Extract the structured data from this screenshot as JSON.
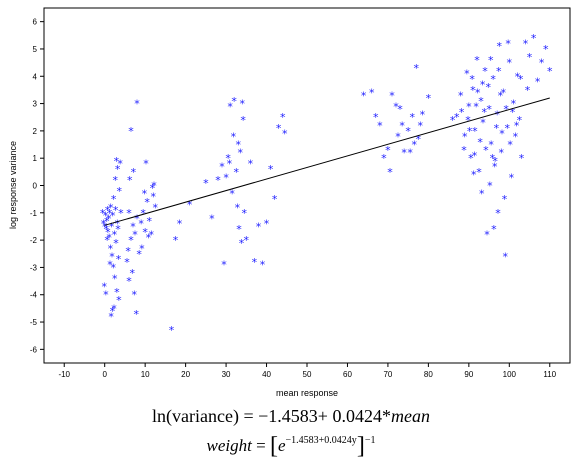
{
  "chart_data": {
    "type": "scatter",
    "title": "",
    "xlabel": "mean response",
    "ylabel": "log response variance",
    "xlim": [
      -15,
      115
    ],
    "ylim": [
      -6.5,
      6.5
    ],
    "xticks": [
      -10,
      0,
      10,
      20,
      30,
      40,
      50,
      60,
      70,
      80,
      90,
      100,
      110
    ],
    "yticks": [
      -6,
      -5,
      -4,
      -3,
      -2,
      -1,
      0,
      1,
      2,
      3,
      4,
      5,
      6
    ],
    "grid": false,
    "marker_color": "#1a1aff",
    "line_color": "#000000",
    "fit_line": {
      "intercept": -1.4583,
      "slope": 0.0424,
      "x_range": [
        0,
        110
      ]
    },
    "points": [
      [
        -0.5,
        -1.0
      ],
      [
        -0.3,
        -1.4
      ],
      [
        0.0,
        -1.5
      ],
      [
        0.2,
        -1.1
      ],
      [
        0.4,
        -1.6
      ],
      [
        0.5,
        -1.3
      ],
      [
        0.7,
        -0.9
      ],
      [
        0.8,
        -1.7
      ],
      [
        1.0,
        -1.2
      ],
      [
        1.1,
        -1.9
      ],
      [
        1.2,
        -1.0
      ],
      [
        1.4,
        -2.3
      ],
      [
        1.5,
        -0.8
      ],
      [
        1.7,
        -1.5
      ],
      [
        1.8,
        -2.6
      ],
      [
        2.0,
        -1.1
      ],
      [
        2.1,
        -3.0
      ],
      [
        2.2,
        -0.5
      ],
      [
        2.4,
        -1.8
      ],
      [
        2.5,
        -3.4
      ],
      [
        2.6,
        0.2
      ],
      [
        2.8,
        -2.1
      ],
      [
        3.0,
        -3.9
      ],
      [
        3.1,
        -1.4
      ],
      [
        3.2,
        0.6
      ],
      [
        3.4,
        -2.7
      ],
      [
        3.5,
        -4.2
      ],
      [
        3.6,
        -0.2
      ],
      [
        3.8,
        0.8
      ],
      [
        4.0,
        -1.0
      ],
      [
        -0.1,
        -3.7
      ],
      [
        0.3,
        -4.0
      ],
      [
        1.6,
        -4.8
      ],
      [
        1.9,
        -4.6
      ],
      [
        2.3,
        -4.5
      ],
      [
        0.6,
        -2.0
      ],
      [
        1.3,
        -2.9
      ],
      [
        2.7,
        -0.9
      ],
      [
        3.3,
        -1.6
      ],
      [
        2.9,
        0.9
      ],
      [
        6.0,
        -1.0
      ],
      [
        6.5,
        -2.0
      ],
      [
        7.0,
        -1.5
      ],
      [
        7.5,
        -1.8
      ],
      [
        8.0,
        -1.2
      ],
      [
        8.5,
        -2.5
      ],
      [
        9.0,
        -1.4
      ],
      [
        9.5,
        -1.0
      ],
      [
        10.0,
        -1.7
      ],
      [
        10.5,
        -0.6
      ],
      [
        11.0,
        -1.3
      ],
      [
        11.5,
        -1.8
      ],
      [
        12.0,
        -0.4
      ],
      [
        12.5,
        -0.8
      ],
      [
        6.2,
        0.2
      ],
      [
        7.1,
        0.5
      ],
      [
        6.8,
        -3.2
      ],
      [
        7.3,
        -4.0
      ],
      [
        7.8,
        -4.7
      ],
      [
        6.0,
        -3.5
      ],
      [
        5.5,
        -2.8
      ],
      [
        9.2,
        -2.3
      ],
      [
        10.8,
        -1.9
      ],
      [
        12.2,
        0.0
      ],
      [
        6.5,
        2.0
      ],
      [
        8.0,
        3.0
      ],
      [
        10.2,
        0.8
      ],
      [
        11.8,
        -0.1
      ],
      [
        9.8,
        -0.3
      ],
      [
        5.8,
        -2.4
      ],
      [
        16.5,
        -5.3
      ],
      [
        17.5,
        -2.0
      ],
      [
        18.5,
        -1.4
      ],
      [
        21.0,
        -0.7
      ],
      [
        25.0,
        0.1
      ],
      [
        26.5,
        -1.2
      ],
      [
        28.0,
        0.2
      ],
      [
        29.0,
        0.7
      ],
      [
        29.5,
        -2.9
      ],
      [
        30.0,
        0.3
      ],
      [
        30.5,
        1.0
      ],
      [
        31.0,
        2.9
      ],
      [
        31.5,
        -0.3
      ],
      [
        32.0,
        3.1
      ],
      [
        32.5,
        0.5
      ],
      [
        33.0,
        1.5
      ],
      [
        33.5,
        1.2
      ],
      [
        34.0,
        3.0
      ],
      [
        34.5,
        -1.0
      ],
      [
        33.8,
        -2.1
      ],
      [
        33.2,
        -1.6
      ],
      [
        32.8,
        -0.8
      ],
      [
        35.0,
        -2.0
      ],
      [
        36.0,
        0.8
      ],
      [
        37.0,
        -2.8
      ],
      [
        38.0,
        -1.5
      ],
      [
        39.0,
        -2.9
      ],
      [
        40.0,
        -1.4
      ],
      [
        41.0,
        0.6
      ],
      [
        42.0,
        -0.5
      ],
      [
        43.0,
        2.1
      ],
      [
        44.0,
        2.5
      ],
      [
        44.5,
        1.9
      ],
      [
        34.2,
        2.4
      ],
      [
        31.8,
        1.8
      ],
      [
        30.8,
        0.8
      ],
      [
        64.0,
        3.3
      ],
      [
        66.0,
        3.4
      ],
      [
        67.0,
        2.5
      ],
      [
        68.0,
        2.2
      ],
      [
        69.0,
        1.0
      ],
      [
        70.0,
        1.3
      ],
      [
        71.0,
        3.3
      ],
      [
        72.0,
        2.9
      ],
      [
        73.0,
        2.8
      ],
      [
        74.0,
        1.2
      ],
      [
        75.0,
        2.0
      ],
      [
        75.5,
        1.2
      ],
      [
        76.0,
        2.5
      ],
      [
        76.5,
        1.5
      ],
      [
        77.0,
        4.3
      ],
      [
        77.5,
        1.7
      ],
      [
        78.0,
        2.2
      ],
      [
        78.5,
        2.6
      ],
      [
        80.0,
        3.2
      ],
      [
        72.5,
        1.8
      ],
      [
        70.5,
        0.5
      ],
      [
        73.5,
        2.2
      ],
      [
        86.0,
        2.4
      ],
      [
        87.0,
        2.5
      ],
      [
        88.0,
        3.3
      ],
      [
        89.0,
        1.8
      ],
      [
        89.5,
        4.1
      ],
      [
        90.0,
        2.9
      ],
      [
        90.5,
        1.0
      ],
      [
        91.0,
        3.5
      ],
      [
        91.5,
        2.0
      ],
      [
        92.0,
        4.6
      ],
      [
        92.5,
        0.5
      ],
      [
        93.0,
        3.1
      ],
      [
        93.5,
        2.3
      ],
      [
        94.0,
        4.2
      ],
      [
        94.5,
        -1.8
      ],
      [
        95.0,
        2.8
      ],
      [
        95.5,
        1.5
      ],
      [
        96.0,
        3.9
      ],
      [
        96.5,
        0.9
      ],
      [
        97.0,
        2.6
      ],
      [
        97.5,
        5.1
      ],
      [
        98.0,
        1.2
      ],
      [
        98.5,
        3.4
      ],
      [
        99.0,
        -2.6
      ],
      [
        99.5,
        2.1
      ],
      [
        100.0,
        4.5
      ],
      [
        100.5,
        0.3
      ],
      [
        101.0,
        3.0
      ],
      [
        101.5,
        1.8
      ],
      [
        102.0,
        4.0
      ],
      [
        102.5,
        2.4
      ],
      [
        103.0,
        1.0
      ],
      [
        104.0,
        5.2
      ],
      [
        104.5,
        3.5
      ],
      [
        105.0,
        4.7
      ],
      [
        106.0,
        5.4
      ],
      [
        107.0,
        3.8
      ],
      [
        108.0,
        4.5
      ],
      [
        109.0,
        5.0
      ],
      [
        110.0,
        4.2
      ],
      [
        97.2,
        -1.0
      ],
      [
        96.2,
        -1.6
      ],
      [
        98.8,
        -0.5
      ],
      [
        95.2,
        0.0
      ],
      [
        93.2,
        -0.3
      ],
      [
        91.2,
        0.4
      ],
      [
        100.2,
        1.5
      ],
      [
        99.2,
        2.8
      ],
      [
        97.8,
        3.3
      ],
      [
        96.8,
        2.1
      ],
      [
        95.8,
        1.0
      ],
      [
        94.8,
        3.6
      ],
      [
        93.8,
        2.7
      ],
      [
        92.8,
        1.6
      ],
      [
        91.8,
        2.9
      ],
      [
        90.8,
        3.9
      ],
      [
        89.8,
        2.4
      ],
      [
        88.8,
        1.3
      ],
      [
        99.7,
        5.2
      ],
      [
        102.8,
        3.9
      ],
      [
        100.8,
        2.7
      ],
      [
        98.2,
        1.9
      ],
      [
        96.4,
        0.7
      ],
      [
        94.2,
        1.3
      ],
      [
        92.2,
        3.4
      ],
      [
        90.2,
        2.0
      ],
      [
        88.2,
        2.7
      ],
      [
        101.8,
        2.2
      ],
      [
        97.4,
        4.2
      ],
      [
        95.4,
        4.6
      ],
      [
        93.4,
        3.7
      ],
      [
        91.4,
        1.1
      ]
    ]
  },
  "equations": {
    "line1_fn": "ln(variance) = ",
    "line1_coeffs": "−1.4583+ 0.0424*",
    "line1_var": "mean",
    "line2_lhs": "weight",
    "line2_mid": " = ",
    "line2_lbr": "[",
    "line2_base": "e",
    "line2_exp": "−1.4583+0.0424y",
    "line2_rbr": "]",
    "line2_pow": "−1"
  }
}
